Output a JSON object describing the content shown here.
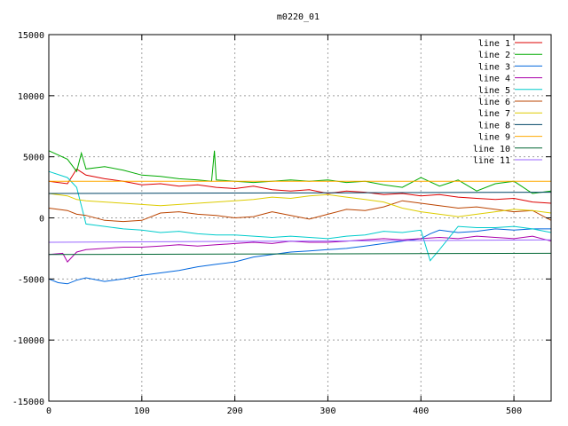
{
  "chart_data": {
    "type": "line",
    "title": "m0220_01",
    "xlabel": "",
    "ylabel": "",
    "xlim": [
      0,
      540
    ],
    "ylim": [
      -15000,
      15000
    ],
    "xticks": [
      0,
      100,
      200,
      300,
      400,
      500
    ],
    "yticks": [
      -15000,
      -10000,
      -5000,
      0,
      5000,
      10000,
      15000
    ],
    "grid": true,
    "legend_position": "top-right",
    "series": [
      {
        "name": "line 1",
        "color": "#dd0000",
        "x": [
          0,
          20,
          30,
          40,
          60,
          80,
          100,
          120,
          140,
          160,
          180,
          200,
          220,
          240,
          260,
          280,
          300,
          320,
          340,
          360,
          380,
          400,
          420,
          440,
          460,
          480,
          500,
          520,
          540
        ],
        "y": [
          3000,
          2800,
          4000,
          3500,
          3200,
          3000,
          2700,
          2800,
          2600,
          2700,
          2500,
          2400,
          2600,
          2300,
          2200,
          2300,
          2000,
          2200,
          2100,
          1900,
          2000,
          1800,
          1900,
          1700,
          1600,
          1500,
          1600,
          1300,
          1200
        ]
      },
      {
        "name": "line 2",
        "color": "#00aa00",
        "x": [
          0,
          20,
          30,
          35,
          40,
          60,
          80,
          100,
          120,
          140,
          160,
          175,
          178,
          180,
          200,
          220,
          240,
          260,
          280,
          300,
          320,
          340,
          360,
          380,
          400,
          420,
          440,
          460,
          480,
          500,
          520,
          540
        ],
        "y": [
          5500,
          4800,
          3800,
          5300,
          4000,
          4200,
          3900,
          3500,
          3400,
          3200,
          3100,
          3000,
          5500,
          3100,
          3000,
          2900,
          3000,
          3100,
          3000,
          3100,
          2900,
          3000,
          2700,
          2500,
          3300,
          2600,
          3100,
          2200,
          2800,
          3000,
          2000,
          2200
        ]
      },
      {
        "name": "line 3",
        "color": "#0066dd",
        "x": [
          0,
          10,
          20,
          30,
          40,
          60,
          80,
          100,
          120,
          140,
          160,
          180,
          200,
          220,
          240,
          260,
          280,
          300,
          320,
          340,
          360,
          380,
          400,
          410,
          420,
          440,
          460,
          480,
          500,
          520,
          540
        ],
        "y": [
          -5000,
          -5300,
          -5400,
          -5100,
          -4900,
          -5200,
          -5000,
          -4700,
          -4500,
          -4300,
          -4000,
          -3800,
          -3600,
          -3200,
          -3000,
          -2800,
          -2700,
          -2600,
          -2500,
          -2300,
          -2100,
          -1900,
          -1700,
          -1300,
          -1000,
          -1200,
          -1100,
          -900,
          -1000,
          -900,
          -900
        ]
      },
      {
        "name": "line 4",
        "color": "#aa00aa",
        "x": [
          0,
          15,
          20,
          30,
          40,
          60,
          80,
          100,
          120,
          140,
          160,
          180,
          200,
          220,
          240,
          260,
          280,
          300,
          320,
          340,
          360,
          380,
          400,
          420,
          440,
          460,
          480,
          500,
          520,
          540
        ],
        "y": [
          -3000,
          -2900,
          -3600,
          -2800,
          -2600,
          -2500,
          -2400,
          -2400,
          -2300,
          -2200,
          -2300,
          -2200,
          -2100,
          -2000,
          -2100,
          -1900,
          -2000,
          -2000,
          -1900,
          -1800,
          -1700,
          -1800,
          -1700,
          -1600,
          -1700,
          -1500,
          -1600,
          -1700,
          -1500,
          -1900
        ]
      },
      {
        "name": "line 5",
        "color": "#00cccc",
        "x": [
          0,
          20,
          30,
          40,
          60,
          80,
          100,
          120,
          140,
          160,
          180,
          200,
          220,
          240,
          260,
          280,
          300,
          320,
          340,
          360,
          380,
          400,
          410,
          420,
          440,
          460,
          480,
          500,
          520,
          540
        ],
        "y": [
          3800,
          3300,
          2500,
          -500,
          -700,
          -900,
          -1000,
          -1200,
          -1100,
          -1300,
          -1400,
          -1400,
          -1500,
          -1600,
          -1500,
          -1600,
          -1700,
          -1500,
          -1400,
          -1100,
          -1200,
          -1000,
          -3500,
          -2600,
          -700,
          -800,
          -800,
          -700,
          -900,
          -1200
        ]
      },
      {
        "name": "line 6",
        "color": "#bb4400",
        "x": [
          0,
          20,
          30,
          40,
          60,
          80,
          100,
          120,
          140,
          160,
          180,
          200,
          220,
          240,
          260,
          280,
          300,
          320,
          340,
          360,
          380,
          400,
          420,
          440,
          460,
          480,
          500,
          520,
          540
        ],
        "y": [
          800,
          600,
          300,
          200,
          -200,
          -300,
          -200,
          400,
          500,
          300,
          200,
          0,
          100,
          500,
          200,
          -100,
          300,
          700,
          600,
          900,
          1400,
          1200,
          1000,
          800,
          900,
          700,
          500,
          600,
          -200
        ]
      },
      {
        "name": "line 7",
        "color": "#ddcc00",
        "x": [
          0,
          20,
          30,
          40,
          60,
          80,
          100,
          120,
          140,
          160,
          180,
          200,
          220,
          240,
          260,
          280,
          300,
          320,
          340,
          360,
          380,
          400,
          420,
          440,
          460,
          480,
          500,
          520,
          540
        ],
        "y": [
          2000,
          1800,
          1500,
          1400,
          1300,
          1200,
          1100,
          1000,
          1100,
          1200,
          1300,
          1400,
          1500,
          1700,
          1600,
          1800,
          1900,
          1700,
          1500,
          1300,
          800,
          500,
          300,
          100,
          300,
          500,
          700,
          600,
          400
        ]
      },
      {
        "name": "line 8",
        "color": "#004466",
        "x": [
          0,
          540
        ],
        "y": [
          2000,
          2100
        ]
      },
      {
        "name": "line 9",
        "color": "#ffaa00",
        "x": [
          0,
          540
        ],
        "y": [
          3000,
          3000
        ]
      },
      {
        "name": "line 10",
        "color": "#006633",
        "x": [
          0,
          540
        ],
        "y": [
          -3000,
          -2900
        ]
      },
      {
        "name": "line 11",
        "color": "#9966ff",
        "x": [
          0,
          540
        ],
        "y": [
          -2000,
          -1800
        ]
      }
    ]
  }
}
